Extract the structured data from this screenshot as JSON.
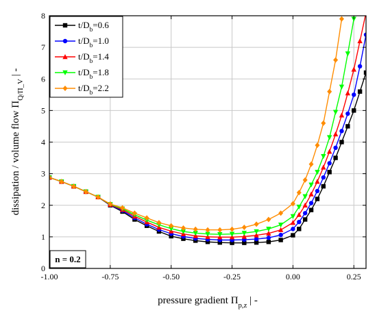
{
  "chart_data": {
    "type": "line",
    "xlabel": "pressure gradient Π_p,z  |  -",
    "ylabel": "dissipation / volume flow Π_Q/Π_V  |  -",
    "xlim": [
      -1.0,
      0.3
    ],
    "ylim": [
      0,
      8
    ],
    "x_ticks": [
      "-1.00",
      "-0.75",
      "-0.50",
      "-0.25",
      "0.00",
      "0.25"
    ],
    "y_ticks": [
      "0",
      "1",
      "2",
      "3",
      "4",
      "5",
      "6",
      "7",
      "8"
    ],
    "grid": true,
    "legend_position": "top-left",
    "annotation": "n = 0.2",
    "series": [
      {
        "name": "t/D_b=0.6",
        "marker": "square",
        "color": "#000000",
        "x": [
          -1.0,
          -0.95,
          -0.9,
          -0.85,
          -0.8,
          -0.75,
          -0.7,
          -0.65,
          -0.6,
          -0.55,
          -0.5,
          -0.45,
          -0.4,
          -0.35,
          -0.3,
          -0.25,
          -0.2,
          -0.15,
          -0.1,
          -0.05,
          0.0,
          0.025,
          0.05,
          0.075,
          0.1,
          0.125,
          0.15,
          0.175,
          0.2,
          0.225,
          0.25,
          0.275,
          0.3
        ],
        "y": [
          2.88,
          2.75,
          2.6,
          2.43,
          2.26,
          2.0,
          1.8,
          1.55,
          1.35,
          1.17,
          1.02,
          0.94,
          0.88,
          0.84,
          0.82,
          0.81,
          0.81,
          0.82,
          0.84,
          0.9,
          1.05,
          1.25,
          1.55,
          1.85,
          2.2,
          2.6,
          3.05,
          3.5,
          4.0,
          4.5,
          5.0,
          5.6,
          6.2
        ]
      },
      {
        "name": "t/D_b=1.0",
        "marker": "circle",
        "color": "#0000ff",
        "x": [
          -1.0,
          -0.95,
          -0.9,
          -0.85,
          -0.8,
          -0.75,
          -0.7,
          -0.65,
          -0.6,
          -0.55,
          -0.5,
          -0.45,
          -0.4,
          -0.35,
          -0.3,
          -0.25,
          -0.2,
          -0.15,
          -0.1,
          -0.05,
          0.0,
          0.025,
          0.05,
          0.075,
          0.1,
          0.125,
          0.15,
          0.175,
          0.2,
          0.225,
          0.25,
          0.275,
          0.3
        ],
        "y": [
          2.88,
          2.75,
          2.6,
          2.43,
          2.26,
          2.01,
          1.83,
          1.6,
          1.4,
          1.23,
          1.1,
          1.01,
          0.95,
          0.92,
          0.9,
          0.9,
          0.91,
          0.93,
          0.97,
          1.06,
          1.25,
          1.47,
          1.75,
          2.07,
          2.45,
          2.88,
          3.33,
          3.82,
          4.35,
          4.9,
          5.5,
          6.4,
          7.4
        ]
      },
      {
        "name": "t/D_b=1.4",
        "marker": "triangle-up",
        "color": "#ff0000",
        "x": [
          -1.0,
          -0.95,
          -0.9,
          -0.85,
          -0.8,
          -0.75,
          -0.7,
          -0.65,
          -0.6,
          -0.55,
          -0.5,
          -0.45,
          -0.4,
          -0.35,
          -0.3,
          -0.25,
          -0.2,
          -0.15,
          -0.1,
          -0.05,
          0.0,
          0.025,
          0.05,
          0.075,
          0.1,
          0.125,
          0.15,
          0.175,
          0.2,
          0.225,
          0.25,
          0.275,
          0.3
        ],
        "y": [
          2.88,
          2.75,
          2.6,
          2.43,
          2.26,
          2.02,
          1.86,
          1.65,
          1.47,
          1.3,
          1.18,
          1.09,
          1.03,
          1.0,
          0.99,
          0.99,
          1.01,
          1.05,
          1.11,
          1.22,
          1.45,
          1.7,
          2.0,
          2.35,
          2.75,
          3.2,
          3.7,
          4.25,
          4.85,
          5.55,
          6.3,
          7.2,
          8.1
        ]
      },
      {
        "name": "t/D_b=1.8",
        "marker": "triangle-down",
        "color": "#00ff00",
        "x": [
          -1.0,
          -0.95,
          -0.9,
          -0.85,
          -0.8,
          -0.75,
          -0.7,
          -0.65,
          -0.6,
          -0.55,
          -0.5,
          -0.45,
          -0.4,
          -0.35,
          -0.3,
          -0.25,
          -0.2,
          -0.15,
          -0.1,
          -0.05,
          0.0,
          0.025,
          0.05,
          0.075,
          0.1,
          0.125,
          0.15,
          0.175,
          0.2,
          0.225,
          0.25
        ],
        "y": [
          2.88,
          2.75,
          2.6,
          2.43,
          2.26,
          2.03,
          1.89,
          1.7,
          1.53,
          1.38,
          1.26,
          1.17,
          1.12,
          1.09,
          1.08,
          1.09,
          1.12,
          1.17,
          1.25,
          1.38,
          1.65,
          1.95,
          2.28,
          2.65,
          3.05,
          3.55,
          4.15,
          4.95,
          5.75,
          6.8,
          7.9
        ]
      },
      {
        "name": "t/D_b=2.2",
        "marker": "diamond",
        "color": "#ff8c00",
        "x": [
          -1.0,
          -0.95,
          -0.9,
          -0.85,
          -0.8,
          -0.75,
          -0.7,
          -0.65,
          -0.6,
          -0.55,
          -0.5,
          -0.45,
          -0.4,
          -0.35,
          -0.3,
          -0.25,
          -0.2,
          -0.15,
          -0.1,
          -0.05,
          0.0,
          0.025,
          0.05,
          0.075,
          0.1,
          0.125,
          0.15,
          0.175,
          0.2
        ],
        "y": [
          2.88,
          2.75,
          2.6,
          2.43,
          2.26,
          2.04,
          1.92,
          1.75,
          1.6,
          1.45,
          1.35,
          1.28,
          1.24,
          1.22,
          1.22,
          1.24,
          1.3,
          1.4,
          1.55,
          1.75,
          2.05,
          2.4,
          2.8,
          3.3,
          3.9,
          4.6,
          5.6,
          6.6,
          7.9
        ]
      }
    ]
  }
}
